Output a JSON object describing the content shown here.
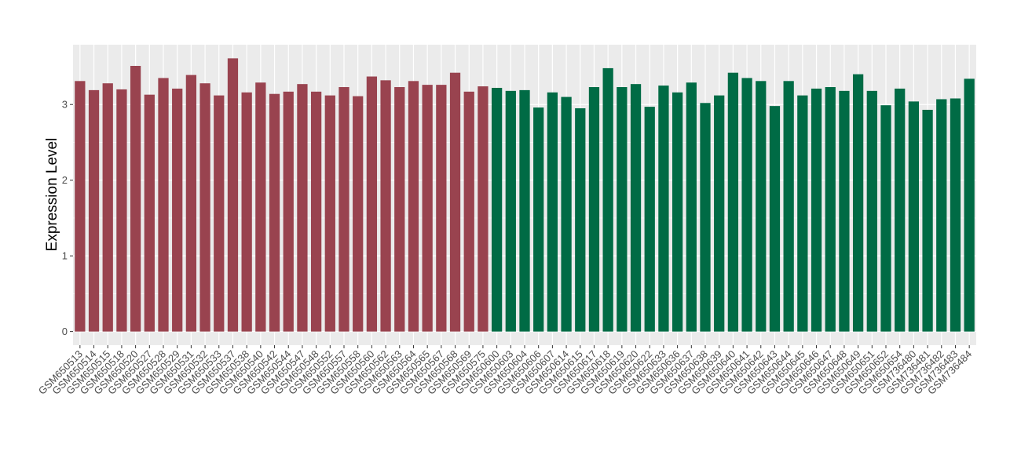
{
  "chart_data": {
    "type": "bar",
    "y_label": "Expression Level",
    "categories": [
      "GSM650513",
      "GSM650514",
      "GSM650515",
      "GSM650518",
      "GSM650520",
      "GSM650527",
      "GSM650528",
      "GSM650529",
      "GSM650531",
      "GSM650532",
      "GSM650533",
      "GSM650537",
      "GSM650538",
      "GSM650540",
      "GSM650542",
      "GSM650544",
      "GSM650547",
      "GSM650548",
      "GSM650552",
      "GSM650557",
      "GSM650558",
      "GSM650560",
      "GSM650562",
      "GSM650563",
      "GSM650564",
      "GSM650565",
      "GSM650567",
      "GSM650568",
      "GSM650569",
      "GSM650575",
      "GSM650600",
      "GSM650603",
      "GSM650604",
      "GSM650606",
      "GSM650607",
      "GSM650614",
      "GSM650615",
      "GSM650617",
      "GSM650618",
      "GSM650619",
      "GSM650620",
      "GSM650622",
      "GSM650633",
      "GSM650636",
      "GSM650637",
      "GSM650638",
      "GSM650639",
      "GSM650640",
      "GSM650641",
      "GSM650642",
      "GSM650643",
      "GSM650644",
      "GSM650645",
      "GSM650646",
      "GSM650647",
      "GSM650648",
      "GSM650649",
      "GSM650651",
      "GSM650652",
      "GSM650654",
      "GSM736480",
      "GSM736481",
      "GSM736482",
      "GSM736483",
      "GSM736484"
    ],
    "values": [
      3.31,
      3.19,
      3.28,
      3.2,
      3.51,
      3.13,
      3.35,
      3.21,
      3.39,
      3.28,
      3.12,
      3.61,
      3.16,
      3.29,
      3.14,
      3.17,
      3.27,
      3.17,
      3.12,
      3.23,
      3.11,
      3.37,
      3.32,
      3.23,
      3.31,
      3.26,
      3.26,
      3.42,
      3.17,
      3.24,
      3.22,
      3.18,
      3.19,
      2.96,
      3.16,
      3.1,
      2.95,
      3.23,
      3.48,
      3.23,
      3.27,
      2.97,
      3.25,
      3.16,
      3.29,
      3.02,
      3.12,
      3.42,
      3.35,
      3.31,
      2.98,
      3.31,
      3.12,
      3.21,
      3.23,
      3.18,
      3.4,
      3.18,
      2.99,
      3.21,
      3.04,
      2.93,
      3.07,
      3.08,
      3.34
    ],
    "colors": [
      "#99434f",
      "#99434f",
      "#99434f",
      "#99434f",
      "#99434f",
      "#99434f",
      "#99434f",
      "#99434f",
      "#99434f",
      "#99434f",
      "#99434f",
      "#99434f",
      "#99434f",
      "#99434f",
      "#99434f",
      "#99434f",
      "#99434f",
      "#99434f",
      "#99434f",
      "#99434f",
      "#99434f",
      "#99434f",
      "#99434f",
      "#99434f",
      "#99434f",
      "#99434f",
      "#99434f",
      "#99434f",
      "#99434f",
      "#99434f",
      "#006b45",
      "#006b45",
      "#006b45",
      "#006b45",
      "#006b45",
      "#006b45",
      "#006b45",
      "#006b45",
      "#006b45",
      "#006b45",
      "#006b45",
      "#006b45",
      "#006b45",
      "#006b45",
      "#006b45",
      "#006b45",
      "#006b45",
      "#006b45",
      "#006b45",
      "#006b45",
      "#006b45",
      "#006b45",
      "#006b45",
      "#006b45",
      "#006b45",
      "#006b45",
      "#006b45",
      "#006b45",
      "#006b45",
      "#006b45",
      "#006b45",
      "#006b45",
      "#006b45",
      "#006b45",
      "#006b45"
    ],
    "ylim": [
      -0.18,
      3.79
    ],
    "yticks": [
      0,
      1,
      2,
      3
    ],
    "grid": true
  }
}
